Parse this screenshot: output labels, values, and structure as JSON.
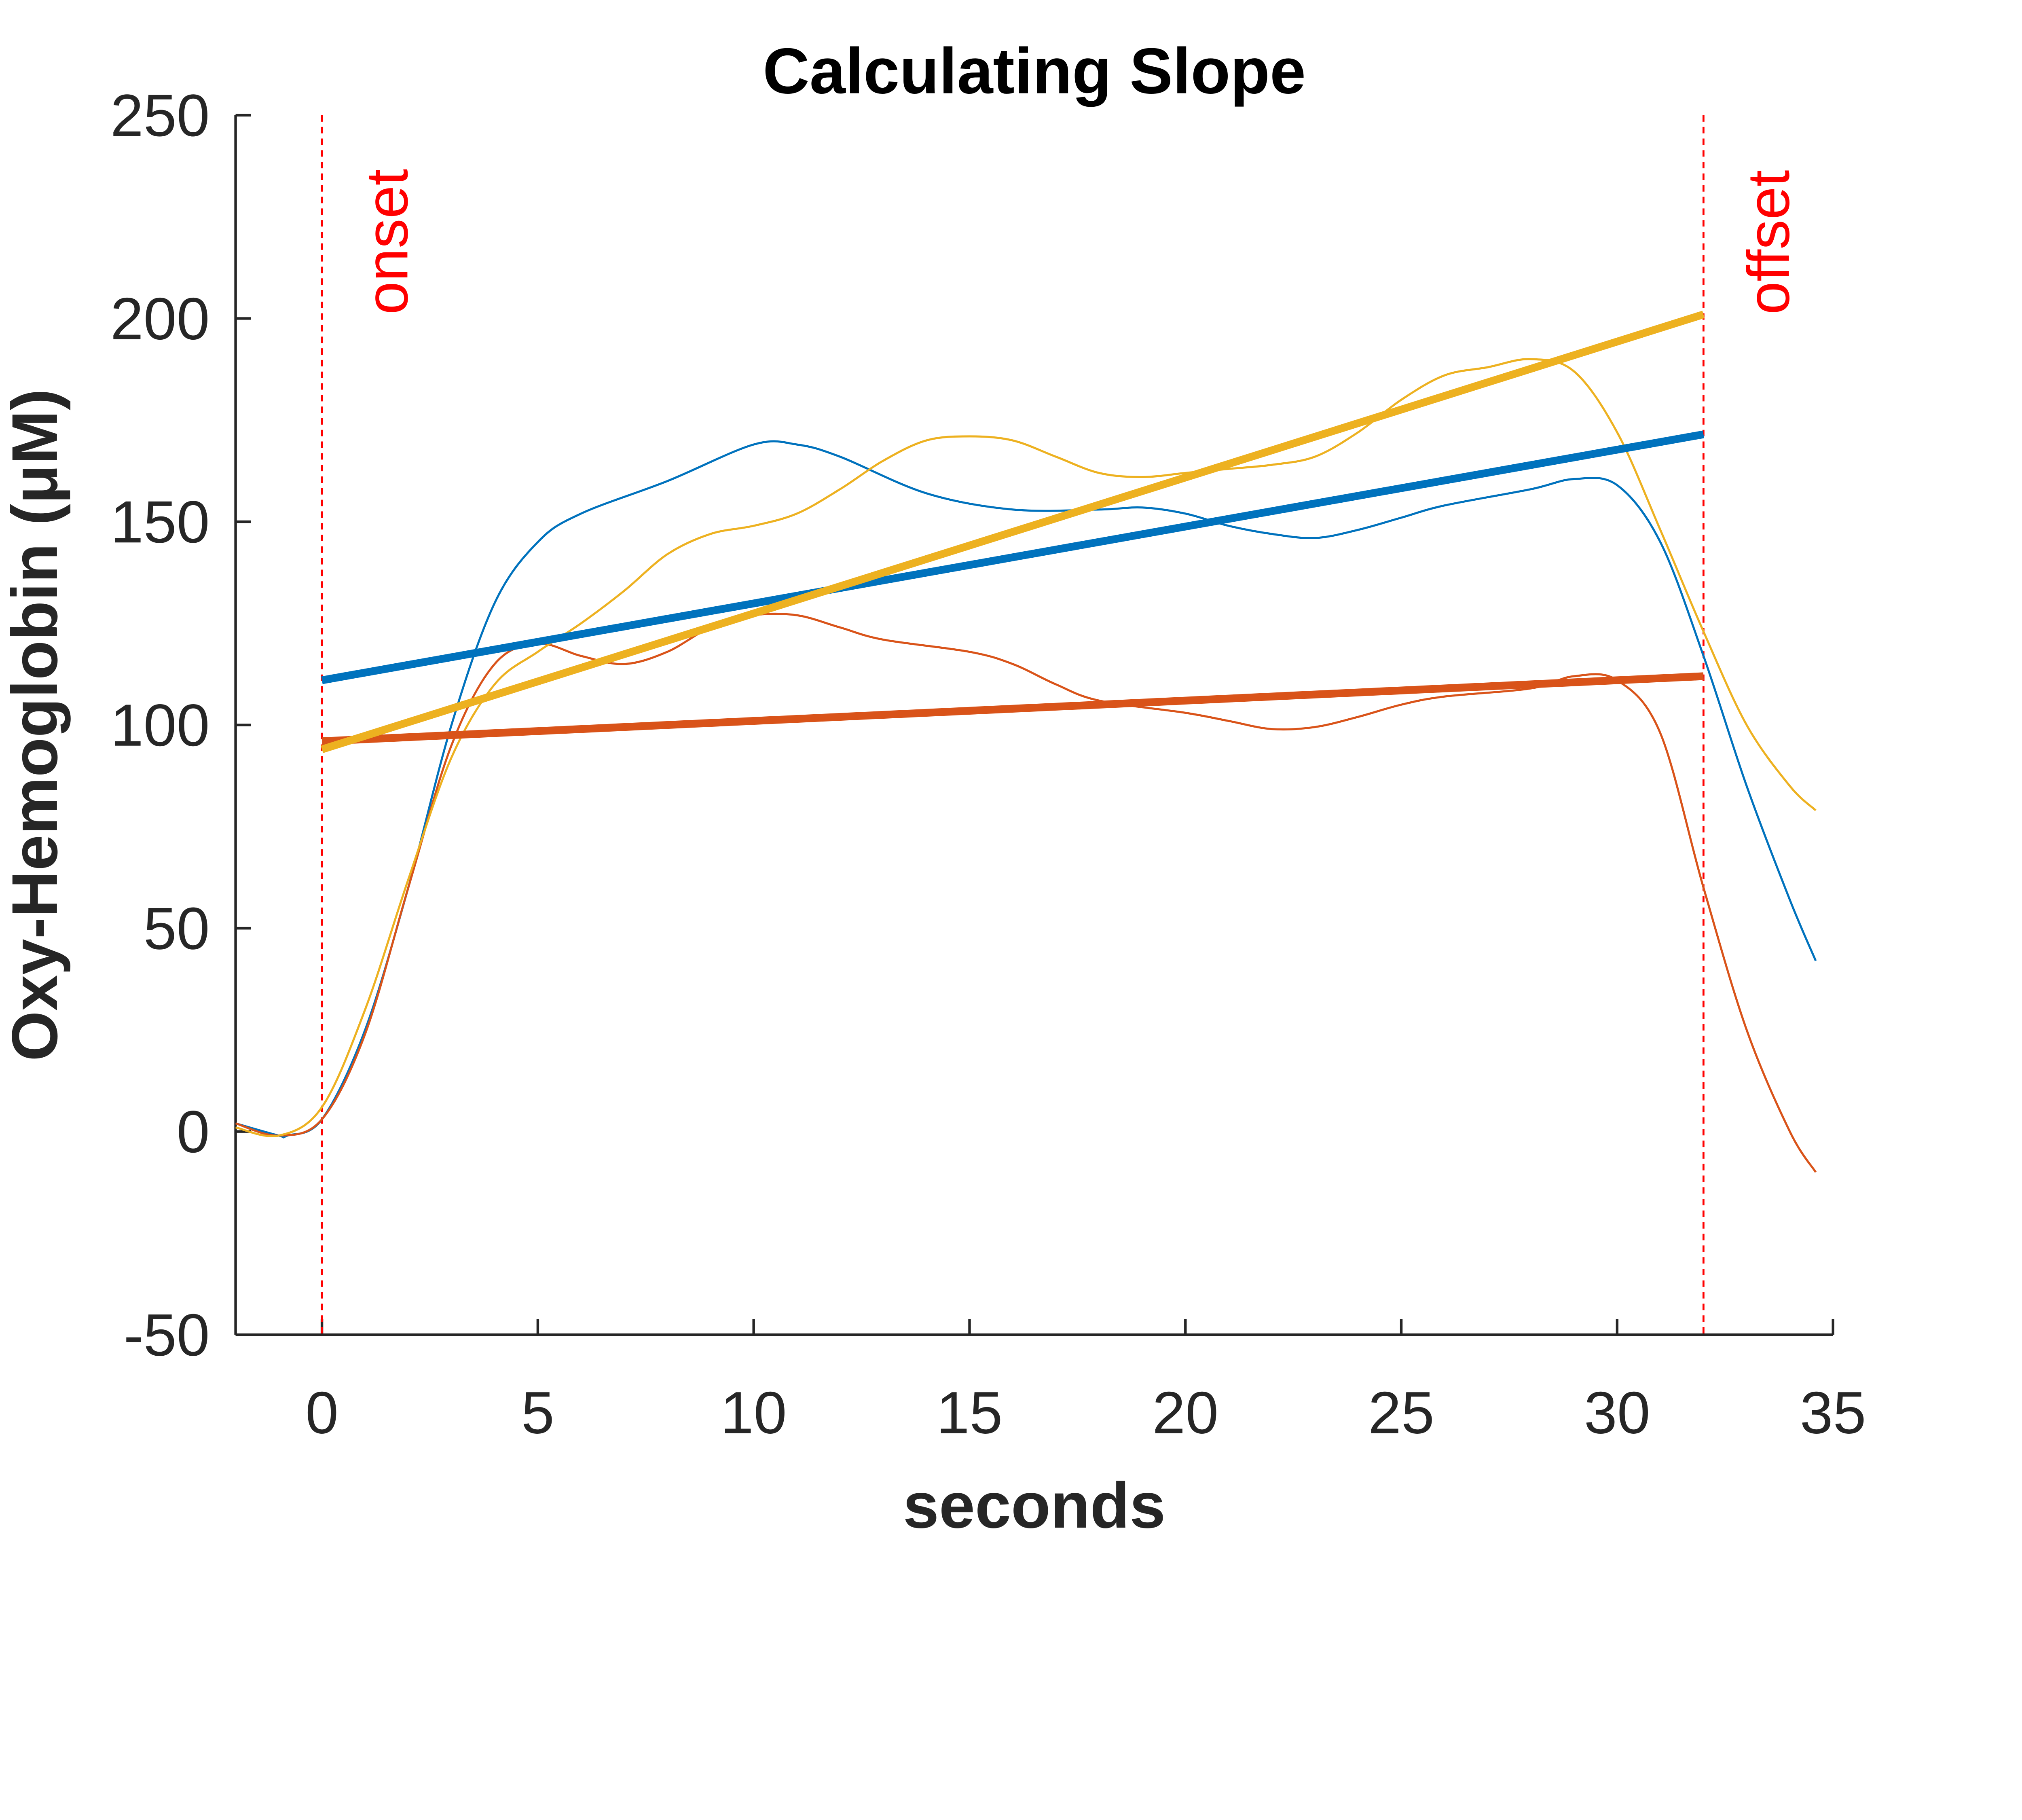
{
  "chart_data": {
    "type": "line",
    "title": "Calculating Slope",
    "xlabel": "seconds",
    "ylabel": "Oxy-Hemoglobin (μM)",
    "xlim": [
      -2,
      35
    ],
    "ylim": [
      -50,
      250
    ],
    "xticks": [
      0,
      5,
      10,
      15,
      20,
      25,
      30,
      35
    ],
    "yticks": [
      -50,
      0,
      50,
      100,
      150,
      200,
      250
    ],
    "grid": false,
    "annotations": [
      {
        "label": "onset",
        "x": 0,
        "color": "#ff0000"
      },
      {
        "label": "offset",
        "x": 32,
        "color": "#ff0000"
      }
    ],
    "series": [
      {
        "color": "#0072bd",
        "style": "thin",
        "x": [
          -2,
          -1,
          -0.8,
          0,
          1,
          2,
          3,
          4,
          5,
          6,
          8,
          10,
          11,
          12,
          14,
          16,
          18,
          19,
          20,
          21,
          22,
          23,
          24,
          25,
          26,
          28,
          29,
          30,
          31,
          32,
          33,
          34,
          34.6
        ],
        "y": [
          2,
          -1,
          -1,
          3,
          25,
          60,
          100,
          130,
          145,
          152,
          160,
          169,
          169,
          166,
          157,
          153,
          153,
          153.5,
          152,
          149,
          147,
          146,
          148,
          151,
          154,
          158,
          160.5,
          159,
          145,
          117,
          85,
          57,
          42
        ]
      },
      {
        "color": "#d95319",
        "style": "thin",
        "x": [
          -2,
          -1,
          0,
          1,
          2,
          3,
          4,
          5,
          6,
          7,
          8,
          9,
          10,
          11,
          12,
          13,
          15,
          16,
          17,
          18,
          20,
          21,
          22,
          23,
          24,
          25,
          26,
          28,
          29,
          30,
          31,
          32,
          33,
          34,
          34.6
        ],
        "y": [
          2,
          -1,
          3,
          24,
          60,
          95,
          115,
          120,
          117,
          115,
          118,
          124,
          127,
          127,
          124,
          121,
          118,
          115,
          110,
          106,
          103,
          101,
          99,
          99.5,
          102,
          105,
          107,
          109,
          112,
          111,
          98,
          60,
          25,
          0,
          -10
        ]
      },
      {
        "color": "#edb120",
        "style": "thin",
        "x": [
          -2,
          -1,
          0,
          1,
          2,
          3,
          4,
          5,
          6,
          7,
          8,
          9,
          10,
          11,
          12,
          13,
          14,
          15,
          16,
          17,
          18,
          19,
          20,
          21,
          22,
          23,
          24,
          25,
          26,
          27,
          28,
          29,
          30,
          31,
          32,
          33,
          34,
          34.6
        ],
        "y": [
          1,
          -1,
          6,
          30,
          62,
          92,
          110,
          118,
          125,
          133,
          142,
          147,
          149,
          152,
          158,
          165,
          170,
          171,
          170,
          166,
          162,
          161,
          162,
          163,
          164,
          166,
          172,
          180,
          186,
          188,
          190,
          187,
          172,
          148,
          123,
          100,
          85,
          79
        ]
      },
      {
        "color": "#0072bd",
        "style": "fit",
        "x": [
          0,
          32
        ],
        "y": [
          111,
          171.5
        ]
      },
      {
        "color": "#d95319",
        "style": "fit",
        "x": [
          0,
          32
        ],
        "y": [
          96,
          112
        ]
      },
      {
        "color": "#edb120",
        "style": "fit",
        "x": [
          0,
          32
        ],
        "y": [
          94,
          201
        ]
      }
    ]
  }
}
